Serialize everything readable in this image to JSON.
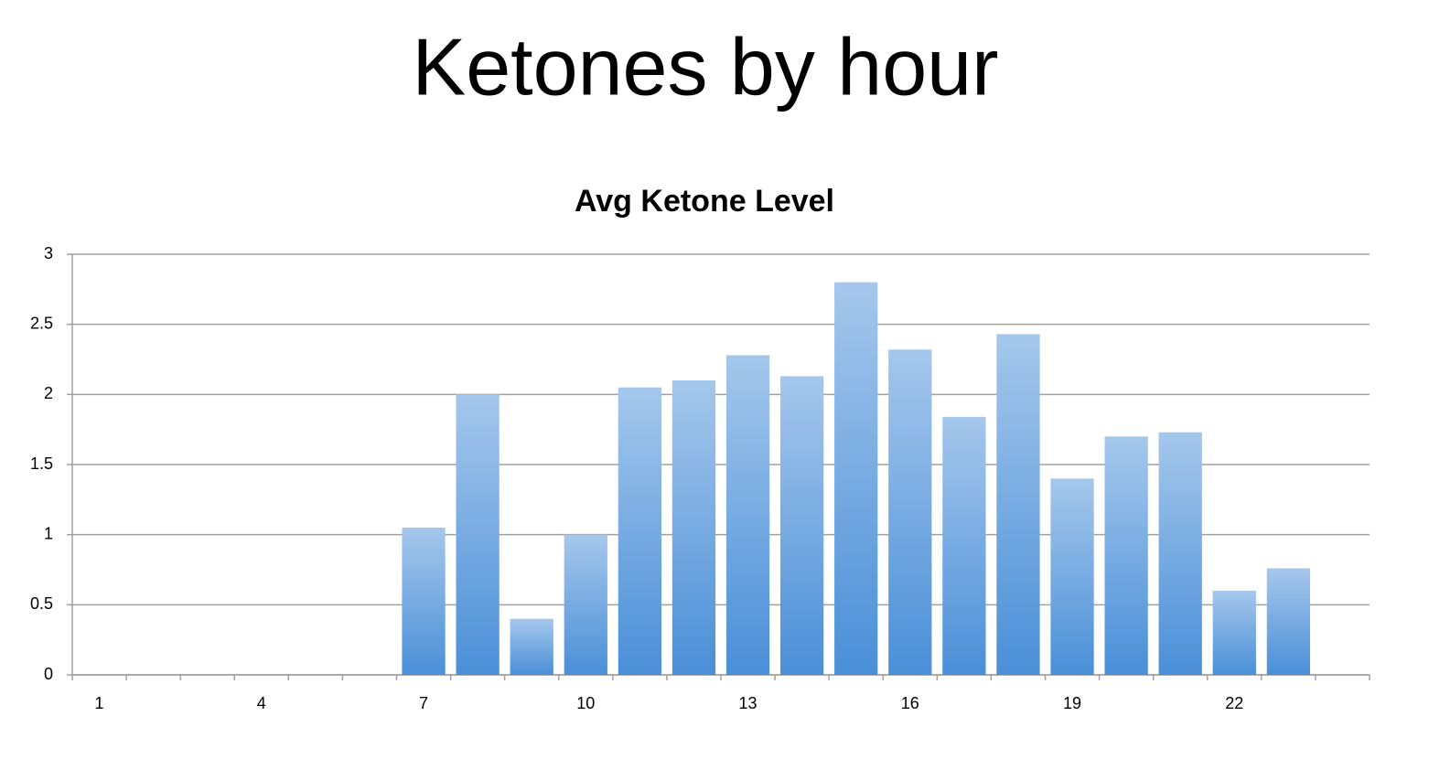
{
  "page_title": "Ketones by hour",
  "chart_data": {
    "type": "bar",
    "title": "Avg Ketone Level",
    "categories": [
      1,
      null,
      null,
      4,
      null,
      null,
      7,
      null,
      null,
      10,
      null,
      null,
      13,
      null,
      null,
      16,
      null,
      null,
      19,
      null,
      null,
      22,
      null,
      null
    ],
    "values": [
      null,
      null,
      null,
      null,
      null,
      null,
      1.05,
      2.0,
      0.4,
      1.0,
      2.05,
      2.1,
      2.28,
      2.13,
      2.8,
      2.32,
      1.84,
      2.43,
      1.4,
      1.7,
      1.73,
      0.6,
      0.76,
      null
    ],
    "color": "#4a8fd8",
    "ylim": [
      0,
      3
    ],
    "yticks": [
      0,
      0.5,
      1,
      1.5,
      2,
      2.5,
      3
    ],
    "grid": true
  }
}
